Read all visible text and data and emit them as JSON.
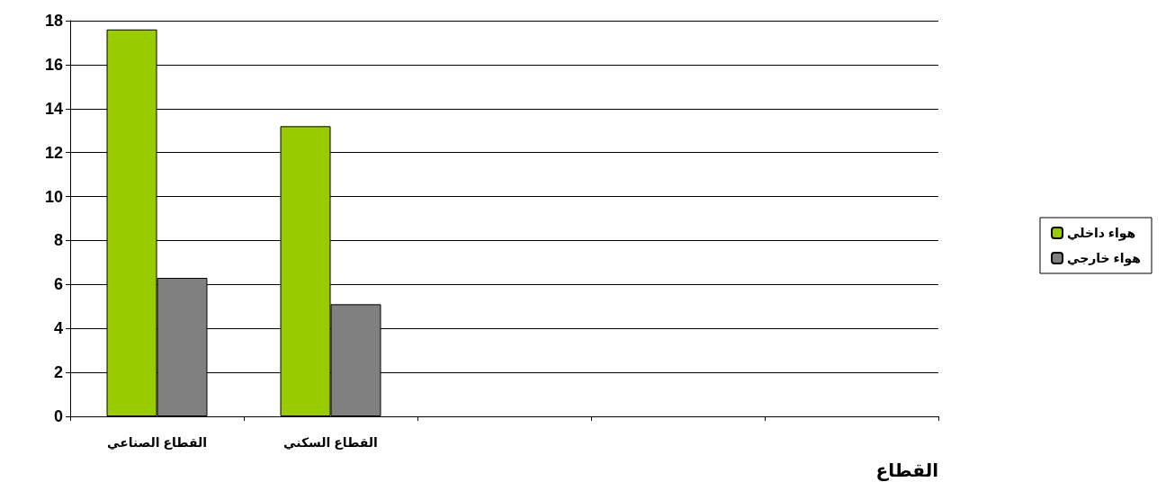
{
  "chart_data": {
    "type": "bar",
    "xlabel": "القطاع",
    "categories": [
      "القطاع الصناعي",
      "القطاع السكني",
      null,
      null,
      null
    ],
    "series": [
      {
        "name": "هواء داخلي",
        "color": "#99cc00",
        "values": [
          17.6,
          13.2,
          null,
          null,
          null
        ]
      },
      {
        "name": "هواء خارجي",
        "color": "#808080",
        "values": [
          6.3,
          5.1,
          null,
          null,
          null
        ]
      }
    ],
    "ylim": [
      0,
      18
    ],
    "yticks": [
      0,
      2,
      4,
      6,
      8,
      10,
      12,
      14,
      16,
      18
    ],
    "grid": "y",
    "legend": "right"
  }
}
